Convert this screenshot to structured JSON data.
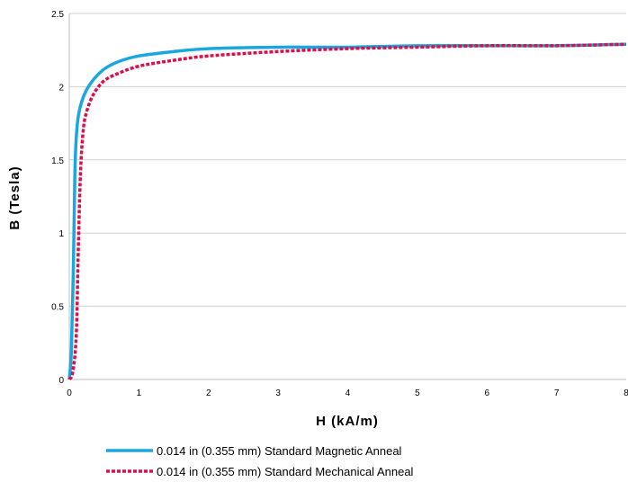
{
  "chart_data": {
    "type": "line",
    "xlabel": "H (kA/m)",
    "ylabel": "B (Tesla)",
    "xlim": [
      0,
      8
    ],
    "ylim": [
      0,
      2.5
    ],
    "x_ticks": [
      "0",
      "1",
      "2",
      "3",
      "4",
      "5",
      "6",
      "7",
      "8"
    ],
    "y_ticks": [
      "0",
      "0.5",
      "1",
      "1.5",
      "2",
      "2.5"
    ],
    "grid": "horizontal",
    "legend_position": "bottom",
    "series": [
      {
        "name": "0.014 in (0.355 mm) Standard Magnetic Anneal",
        "color": "#1aa7e0",
        "style": "solid",
        "points": [
          [
            0,
            0
          ],
          [
            0.03,
            0.2
          ],
          [
            0.06,
            0.8
          ],
          [
            0.08,
            1.4
          ],
          [
            0.1,
            1.65
          ],
          [
            0.13,
            1.8
          ],
          [
            0.18,
            1.9
          ],
          [
            0.25,
            1.98
          ],
          [
            0.35,
            2.05
          ],
          [
            0.5,
            2.12
          ],
          [
            0.7,
            2.17
          ],
          [
            1.0,
            2.21
          ],
          [
            1.5,
            2.24
          ],
          [
            2,
            2.26
          ],
          [
            3,
            2.27
          ],
          [
            4,
            2.27
          ],
          [
            5,
            2.28
          ],
          [
            6,
            2.28
          ],
          [
            7,
            2.28
          ],
          [
            8,
            2.29
          ]
        ]
      },
      {
        "name": "0.014 in (0.355 mm) Standard Mechanical Anneal",
        "color": "#d6124d",
        "style": "dashed",
        "points": [
          [
            0,
            0
          ],
          [
            0.05,
            0.05
          ],
          [
            0.1,
            0.3
          ],
          [
            0.13,
            0.9
          ],
          [
            0.16,
            1.4
          ],
          [
            0.2,
            1.7
          ],
          [
            0.25,
            1.83
          ],
          [
            0.35,
            1.95
          ],
          [
            0.5,
            2.04
          ],
          [
            0.7,
            2.09
          ],
          [
            1.0,
            2.14
          ],
          [
            1.5,
            2.18
          ],
          [
            2,
            2.21
          ],
          [
            3,
            2.24
          ],
          [
            4,
            2.26
          ],
          [
            5,
            2.27
          ],
          [
            6,
            2.28
          ],
          [
            7,
            2.28
          ],
          [
            8,
            2.29
          ]
        ]
      }
    ]
  }
}
